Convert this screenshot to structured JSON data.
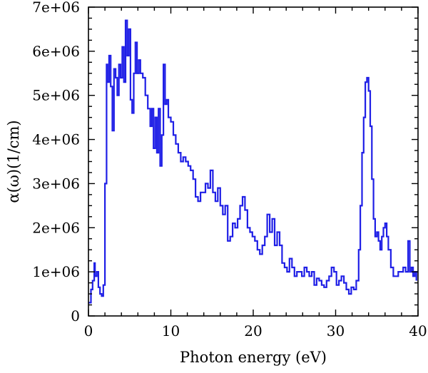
{
  "chart_data": {
    "type": "line",
    "title": "",
    "xlabel": "Photon energy (eV)",
    "ylabel": "α(ω)(1/cm)",
    "xlim": [
      0,
      40
    ],
    "ylim": [
      0,
      7000000
    ],
    "grid": false,
    "legend": "none",
    "x_ticks": [
      0,
      10,
      20,
      30,
      40
    ],
    "x_tick_labels": [
      "0",
      "10",
      "20",
      "30",
      "40"
    ],
    "y_ticks": [
      0,
      1000000,
      2000000,
      3000000,
      4000000,
      5000000,
      6000000,
      7000000
    ],
    "y_tick_labels": [
      "0",
      "1e+06",
      "2e+06",
      "3e+06",
      "4e+06",
      "5e+06",
      "6e+06",
      "7e+06"
    ],
    "series": [
      {
        "color": "#1f1fe6",
        "x": [
          0.0,
          0.3,
          0.5,
          0.7,
          0.8,
          1.0,
          1.2,
          1.4,
          1.6,
          1.8,
          2.0,
          2.2,
          2.3,
          2.5,
          2.7,
          2.9,
          3.1,
          3.3,
          3.5,
          3.7,
          3.9,
          4.1,
          4.3,
          4.5,
          4.7,
          4.9,
          5.1,
          5.3,
          5.5,
          5.7,
          5.9,
          6.1,
          6.3,
          6.6,
          6.9,
          7.2,
          7.5,
          7.7,
          7.9,
          8.1,
          8.3,
          8.5,
          8.7,
          8.9,
          9.1,
          9.3,
          9.5,
          9.7,
          10.0,
          10.3,
          10.6,
          10.9,
          11.2,
          11.5,
          11.8,
          12.1,
          12.4,
          12.7,
          13.0,
          13.3,
          13.6,
          13.9,
          14.2,
          14.5,
          14.8,
          15.1,
          15.4,
          15.7,
          16.0,
          16.3,
          16.6,
          16.9,
          17.2,
          17.5,
          17.8,
          18.1,
          18.4,
          18.7,
          19.0,
          19.3,
          19.6,
          19.9,
          20.2,
          20.5,
          20.8,
          21.1,
          21.4,
          21.7,
          22.0,
          22.3,
          22.6,
          22.9,
          23.2,
          23.5,
          23.8,
          24.1,
          24.4,
          24.7,
          25.0,
          25.3,
          25.6,
          25.9,
          26.2,
          26.5,
          26.8,
          27.1,
          27.4,
          27.7,
          28.0,
          28.3,
          28.6,
          28.9,
          29.2,
          29.5,
          29.8,
          30.1,
          30.4,
          30.7,
          31.0,
          31.3,
          31.6,
          31.9,
          32.2,
          32.5,
          32.8,
          33.0,
          33.2,
          33.4,
          33.6,
          33.8,
          34.0,
          34.2,
          34.4,
          34.6,
          34.8,
          35.0,
          35.2,
          35.4,
          35.6,
          35.8,
          36.0,
          36.2,
          36.4,
          36.7,
          37.0,
          37.3,
          37.6,
          37.9,
          38.2,
          38.5,
          38.8,
          39.0,
          39.2,
          39.4,
          39.6,
          39.8
        ],
        "y": [
          300000,
          600000,
          800000,
          1200000,
          900000,
          1000000,
          650000,
          500000,
          450000,
          700000,
          3000000,
          5700000,
          5300000,
          5900000,
          5200000,
          4200000,
          5600000,
          5400000,
          5000000,
          5700000,
          5400000,
          6100000,
          5300000,
          6700000,
          5900000,
          6500000,
          4900000,
          4600000,
          5500000,
          6200000,
          5500000,
          5800000,
          5500000,
          5400000,
          5000000,
          4700000,
          4300000,
          4700000,
          3800000,
          4500000,
          3700000,
          4700000,
          3400000,
          4100000,
          5700000,
          4800000,
          4900000,
          4500000,
          4400000,
          4100000,
          3900000,
          3700000,
          3500000,
          3600000,
          3500000,
          3400000,
          3300000,
          3100000,
          2700000,
          2600000,
          2800000,
          2800000,
          3000000,
          2900000,
          3300000,
          2800000,
          2600000,
          2900000,
          2500000,
          2300000,
          2500000,
          1700000,
          1800000,
          2100000,
          2000000,
          2200000,
          2500000,
          2700000,
          2400000,
          2000000,
          1900000,
          1800000,
          1700000,
          1500000,
          1400000,
          1600000,
          1800000,
          2300000,
          1900000,
          2200000,
          1600000,
          1900000,
          1600000,
          1200000,
          1100000,
          1000000,
          1300000,
          1100000,
          900000,
          1000000,
          1000000,
          900000,
          1100000,
          1000000,
          900000,
          1000000,
          700000,
          850000,
          800000,
          700000,
          650000,
          800000,
          900000,
          1100000,
          1000000,
          700000,
          800000,
          900000,
          750000,
          600000,
          500000,
          650000,
          600000,
          800000,
          1500000,
          2500000,
          3700000,
          4500000,
          5300000,
          5400000,
          5100000,
          4300000,
          3100000,
          2200000,
          1800000,
          1900000,
          1700000,
          1500000,
          1800000,
          2000000,
          2100000,
          1800000,
          1500000,
          1100000,
          900000,
          900000,
          1000000,
          1000000,
          1100000,
          1000000,
          1700000,
          1000000,
          1100000,
          900000,
          1000000,
          800000
        ]
      }
    ]
  }
}
